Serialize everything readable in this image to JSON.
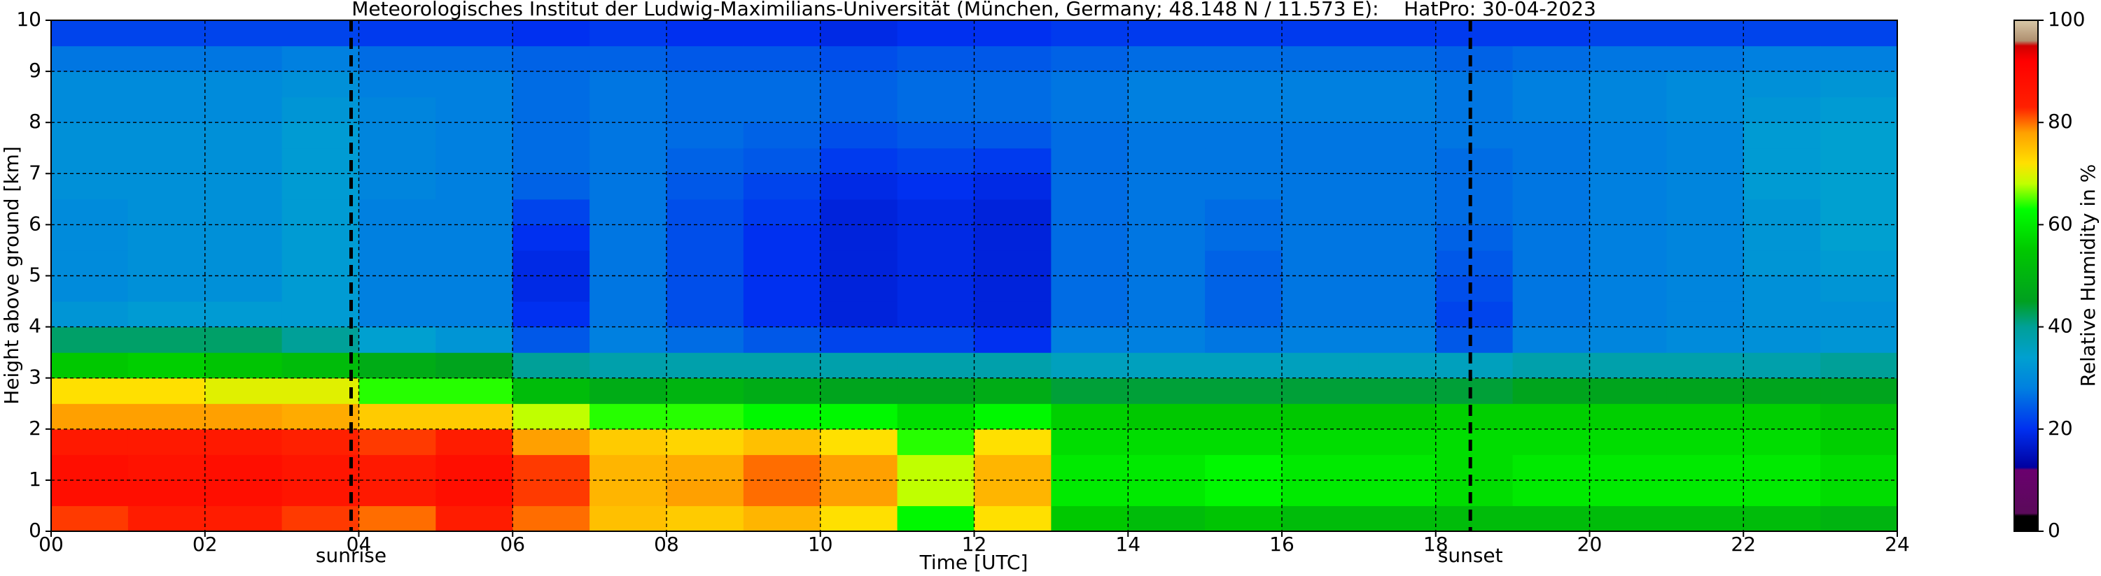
{
  "chart_data": {
    "type": "heatmap",
    "title": "Meteorologisches Institut der Ludwig-Maximilians-Universität (München, Germany; 48.148 N / 11.573 E):    HatPro: 30-04-2023",
    "xlabel": "Time [UTC]",
    "ylabel": "Height above ground [km]",
    "colorbar_label": "Relative Humidity in %",
    "xlim": [
      0,
      24
    ],
    "ylim": [
      0,
      10
    ],
    "xticks": [
      {
        "value": 0,
        "label": "00"
      },
      {
        "value": 2,
        "label": "02"
      },
      {
        "value": 4,
        "label": "04"
      },
      {
        "value": 6,
        "label": "06"
      },
      {
        "value": 8,
        "label": "08"
      },
      10,
      12,
      14,
      16,
      18,
      20,
      22,
      24
    ],
    "yticks": [
      0,
      1,
      2,
      3,
      4,
      5,
      6,
      7,
      8,
      9,
      10
    ],
    "clim": [
      0,
      100
    ],
    "cticks": [
      0,
      20,
      40,
      60,
      80,
      100
    ],
    "grid": true,
    "colorscale": [
      [
        0,
        "#000000"
      ],
      [
        3,
        "#000000"
      ],
      [
        3.5,
        "#5a0a5a"
      ],
      [
        12,
        "#6a006e"
      ],
      [
        12.5,
        "#0000a0"
      ],
      [
        20,
        "#0030f0"
      ],
      [
        28,
        "#0080e0"
      ],
      [
        34,
        "#00a0d0"
      ],
      [
        40,
        "#00a098"
      ],
      [
        45,
        "#00a020"
      ],
      [
        55,
        "#00c800"
      ],
      [
        63,
        "#00ff00"
      ],
      [
        68,
        "#c0ff00"
      ],
      [
        72,
        "#ffe000"
      ],
      [
        78,
        "#ffa000"
      ],
      [
        83,
        "#ff2000"
      ],
      [
        92,
        "#ff0000"
      ],
      [
        95,
        "#d00000"
      ],
      [
        96,
        "#b09070"
      ],
      [
        100,
        "#d8c8a8"
      ]
    ],
    "annotations": [
      {
        "text": "sunrise",
        "x": 3.9
      },
      {
        "text": "sunset",
        "x": 18.45
      }
    ],
    "z": [
      [
        82,
        88,
        88,
        85,
        78,
        72,
        55,
        42,
        32,
        30,
        30,
        30,
        30,
        31,
        31,
        31,
        30,
        30,
        27,
        22
      ],
      [
        84,
        88,
        87,
        85,
        78,
        72,
        56,
        42,
        33,
        31,
        31,
        31,
        31,
        31,
        31,
        31,
        30,
        30,
        27,
        22
      ],
      [
        84,
        88,
        88,
        85,
        78,
        70,
        54,
        42,
        33,
        31,
        31,
        31,
        31,
        31,
        31,
        31,
        30,
        30,
        27,
        22
      ],
      [
        82,
        86,
        86,
        83,
        77,
        70,
        52,
        40,
        33,
        33,
        33,
        33,
        33,
        33,
        33,
        33,
        32,
        31,
        28,
        22
      ],
      [
        80,
        85,
        85,
        82,
        74,
        64,
        48,
        34,
        28,
        28,
        28,
        28,
        28,
        29,
        29,
        29,
        29,
        28,
        26,
        21
      ],
      [
        84,
        88,
        88,
        84,
        74,
        64,
        46,
        32,
        28,
        28,
        28,
        28,
        28,
        28,
        28,
        28,
        28,
        28,
        26,
        21
      ],
      [
        80,
        82,
        82,
        78,
        68,
        52,
        40,
        24,
        20,
        19,
        19,
        20,
        22,
        25,
        26,
        26,
        26,
        26,
        25,
        20
      ],
      [
        75,
        76,
        76,
        74,
        64,
        48,
        38,
        28,
        27,
        27,
        27,
        27,
        27,
        27,
        27,
        27,
        27,
        27,
        25,
        21
      ],
      [
        74,
        78,
        77,
        73,
        64,
        50,
        38,
        26,
        23,
        23,
        23,
        23,
        23,
        24,
        25,
        26,
        26,
        26,
        24,
        20
      ],
      [
        76,
        80,
        80,
        75,
        62,
        48,
        38,
        24,
        20,
        20,
        20,
        20,
        21,
        22,
        24,
        25,
        26,
        26,
        24,
        20
      ],
      [
        72,
        78,
        78,
        72,
        62,
        46,
        38,
        22,
        18,
        18,
        18,
        18,
        18,
        19,
        21,
        23,
        25,
        25,
        23,
        19
      ],
      [
        62,
        68,
        68,
        64,
        58,
        46,
        38,
        22,
        19,
        19,
        19,
        19,
        19,
        20,
        22,
        24,
        26,
        26,
        24,
        20
      ],
      [
        72,
        76,
        76,
        72,
        62,
        48,
        38,
        20,
        18,
        18,
        18,
        18,
        18,
        19,
        21,
        24,
        26,
        26,
        24,
        20
      ],
      [
        55,
        60,
        60,
        58,
        56,
        44,
        36,
        28,
        26,
        26,
        26,
        26,
        26,
        26,
        26,
        26,
        27,
        27,
        25,
        21
      ],
      [
        52,
        60,
        60,
        58,
        55,
        44,
        36,
        28,
        27,
        27,
        27,
        27,
        27,
        27,
        27,
        27,
        28,
        28,
        26,
        21
      ],
      [
        54,
        62,
        62,
        58,
        55,
        44,
        36,
        27,
        25,
        25,
        25,
        26,
        26,
        27,
        27,
        27,
        28,
        28,
        26,
        21
      ],
      [
        52,
        60,
        60,
        58,
        55,
        44,
        36,
        28,
        27,
        27,
        27,
        27,
        27,
        27,
        27,
        27,
        28,
        28,
        26,
        21
      ],
      [
        52,
        60,
        60,
        58,
        55,
        44,
        36,
        28,
        27,
        27,
        27,
        27,
        27,
        27,
        27,
        27,
        28,
        28,
        26,
        21
      ],
      [
        52,
        58,
        58,
        58,
        56,
        44,
        36,
        24,
        22,
        23,
        24,
        25,
        26,
        26,
        26,
        27,
        27,
        27,
        25,
        21
      ],
      [
        52,
        60,
        60,
        58,
        56,
        46,
        38,
        28,
        27,
        27,
        27,
        27,
        27,
        27,
        27,
        27,
        28,
        28,
        26,
        21
      ],
      [
        52,
        60,
        60,
        58,
        56,
        46,
        38,
        29,
        28,
        28,
        28,
        28,
        28,
        28,
        28,
        28,
        29,
        29,
        27,
        22
      ],
      [
        52,
        60,
        60,
        58,
        56,
        46,
        38,
        30,
        29,
        29,
        29,
        29,
        29,
        29,
        29,
        29,
        30,
        30,
        27,
        22
      ],
      [
        52,
        60,
        60,
        58,
        56,
        46,
        38,
        31,
        31,
        31,
        32,
        32,
        32,
        33,
        33,
        33,
        32,
        31,
        28,
        22
      ],
      [
        50,
        58,
        58,
        56,
        54,
        46,
        40,
        32,
        31,
        32,
        33,
        34,
        34,
        34,
        34,
        34,
        33,
        32,
        28,
        22
      ]
    ]
  }
}
